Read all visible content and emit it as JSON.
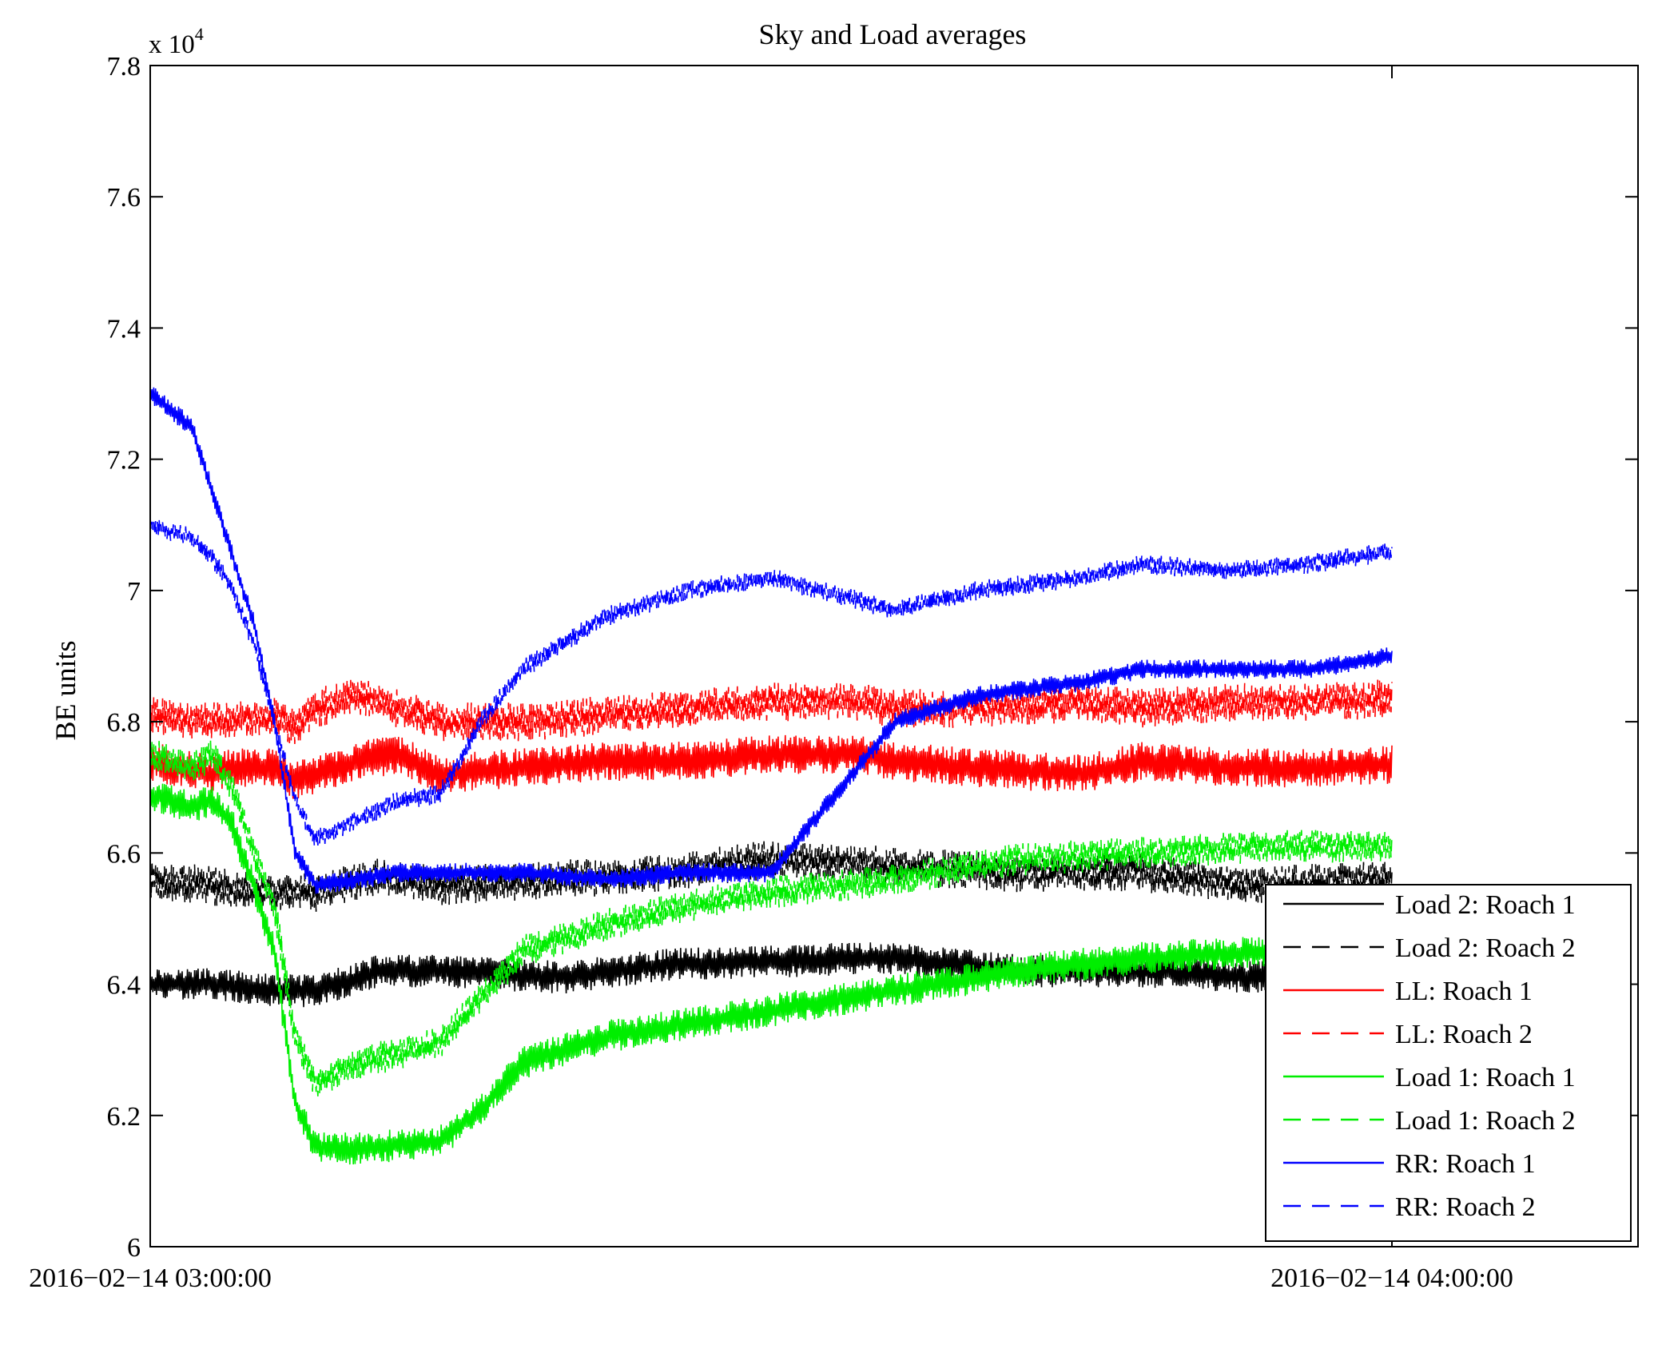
{
  "chart_data": {
    "type": "line",
    "title": "Sky and Load averages",
    "ylabel": "BE units",
    "xlabel": "",
    "y_exponent_label": "x 10",
    "y_exponent_power": "4",
    "ylim": [
      60000,
      78000
    ],
    "xlim": [
      0,
      72
    ],
    "x_unit": "minutes after 2016−02−14 03:00:00",
    "grid": false,
    "legend_position": "bottom-right",
    "y_ticks": [
      60000,
      62000,
      64000,
      66000,
      68000,
      70000,
      72000,
      74000,
      76000,
      78000
    ],
    "y_tick_labels": [
      "6",
      "6.2",
      "6.4",
      "6.6",
      "6.8",
      "7",
      "7.2",
      "7.4",
      "7.6",
      "7.8"
    ],
    "x_ticks": [
      0,
      60
    ],
    "x_tick_labels": [
      "2016−02−14 03:00:00",
      "2016−02−14 04:00:00"
    ],
    "series": [
      {
        "name": "Load 2: Roach 1",
        "color": "#000000",
        "dash": false,
        "x": [
          0,
          3,
          6,
          8,
          11,
          14,
          20,
          25,
          30,
          36,
          42,
          48,
          54,
          60
        ],
        "y": [
          64000,
          64000,
          63900,
          63900,
          64200,
          64200,
          64100,
          64300,
          64350,
          64400,
          64200,
          64200,
          64100,
          64100
        ],
        "noise": 250
      },
      {
        "name": "Load 2: Roach 2",
        "color": "#000000",
        "dash": true,
        "x": [
          0,
          3,
          6,
          8,
          11,
          14,
          20,
          25,
          30,
          36,
          42,
          48,
          54,
          60
        ],
        "y": [
          65600,
          65500,
          65400,
          65400,
          65650,
          65500,
          65600,
          65700,
          65900,
          65800,
          65700,
          65700,
          65500,
          65600
        ],
        "noise": 300
      },
      {
        "name": "LL: Roach 1",
        "color": "#ff0000",
        "dash": false,
        "x": [
          0,
          3,
          4,
          6,
          7,
          8,
          10,
          12,
          14,
          18,
          22,
          26,
          30,
          34,
          36,
          40,
          45,
          48,
          52,
          56,
          60
        ],
        "y": [
          67400,
          67200,
          67300,
          67300,
          67100,
          67200,
          67400,
          67500,
          67200,
          67300,
          67400,
          67400,
          67500,
          67500,
          67400,
          67300,
          67200,
          67400,
          67300,
          67300,
          67350
        ],
        "noise": 300
      },
      {
        "name": "LL: Roach 2",
        "color": "#ff0000",
        "dash": true,
        "x": [
          0,
          3,
          6,
          7,
          8,
          10,
          12,
          14,
          18,
          22,
          26,
          30,
          34,
          36,
          40,
          45,
          48,
          52,
          56,
          60
        ],
        "y": [
          68100,
          68000,
          68100,
          67900,
          68200,
          68400,
          68200,
          68000,
          68000,
          68100,
          68200,
          68300,
          68300,
          68200,
          68200,
          68300,
          68200,
          68300,
          68300,
          68350
        ],
        "noise": 300
      },
      {
        "name": "Load 1: Roach 1",
        "color": "#00ee00",
        "dash": false,
        "x": [
          0,
          2,
          3,
          4,
          5,
          6,
          7,
          8,
          10,
          14,
          16,
          18,
          22,
          26,
          30,
          36,
          42,
          48,
          54,
          60
        ],
        "y": [
          66900,
          66700,
          66800,
          66400,
          65500,
          64500,
          62200,
          61500,
          61500,
          61600,
          62100,
          62800,
          63200,
          63400,
          63600,
          63900,
          64200,
          64400,
          64500,
          64500
        ],
        "noise": 250
      },
      {
        "name": "Load 1: Roach 2",
        "color": "#00ee00",
        "dash": true,
        "x": [
          0,
          2,
          3,
          4,
          5,
          6,
          7,
          8,
          10,
          14,
          16,
          18,
          22,
          26,
          30,
          36,
          42,
          48,
          54,
          60
        ],
        "y": [
          67500,
          67300,
          67500,
          67000,
          66000,
          65200,
          63200,
          62500,
          62800,
          63100,
          63800,
          64500,
          64900,
          65200,
          65400,
          65600,
          65900,
          66000,
          66100,
          66100
        ],
        "noise": 250
      },
      {
        "name": "RR: Roach 1",
        "color": "#0000ff",
        "dash": false,
        "x": [
          0,
          2,
          3,
          4,
          5,
          6,
          7,
          8,
          10,
          12,
          14,
          16,
          18,
          22,
          26,
          30,
          36,
          40,
          45,
          48,
          52,
          56,
          60
        ],
        "y": [
          73000,
          72500,
          71500,
          70500,
          69500,
          68000,
          66000,
          65500,
          65600,
          65700,
          65700,
          65700,
          65700,
          65600,
          65700,
          65700,
          68000,
          68400,
          68600,
          68800,
          68800,
          68800,
          69000
        ],
        "noise": 150
      },
      {
        "name": "RR: Roach 2",
        "color": "#0000ff",
        "dash": true,
        "x": [
          0,
          2,
          3,
          4,
          5,
          6,
          7,
          8,
          10,
          12,
          14,
          16,
          18,
          22,
          26,
          30,
          36,
          40,
          45,
          48,
          52,
          56,
          60
        ],
        "y": [
          71000,
          70800,
          70500,
          70000,
          69200,
          68000,
          66800,
          66200,
          66500,
          66800,
          66900,
          68000,
          68800,
          69600,
          70000,
          70200,
          69700,
          70000,
          70200,
          70400,
          70300,
          70400,
          70600
        ],
        "noise": 150
      }
    ]
  }
}
